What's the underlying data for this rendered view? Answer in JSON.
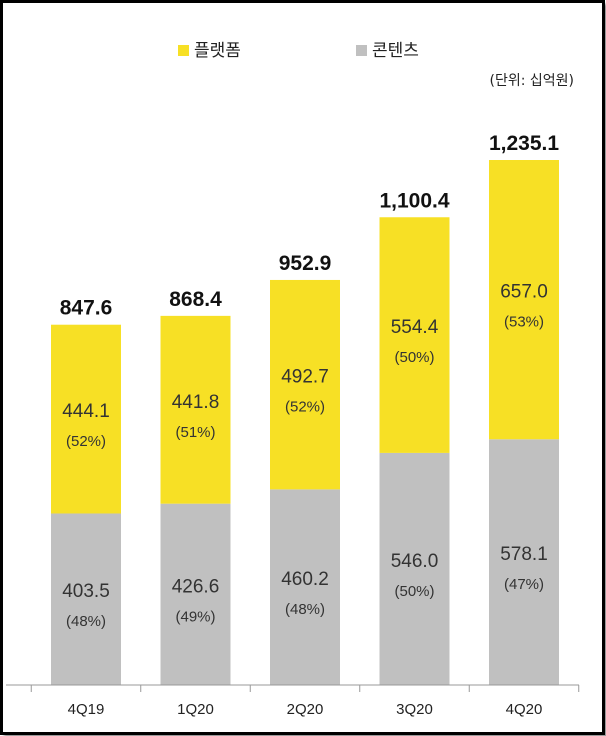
{
  "chart_data": {
    "type": "bar",
    "stacked": true,
    "categories": [
      "4Q19",
      "1Q20",
      "2Q20",
      "3Q20",
      "4Q20"
    ],
    "series": [
      {
        "name": "콘텐츠",
        "values": [
          403.5,
          426.6,
          460.2,
          546.0,
          578.1
        ],
        "value_labels": [
          "403.5",
          "426.6",
          "460.2",
          "546.0",
          "578.1"
        ],
        "share_labels": [
          "(48%)",
          "(49%)",
          "(48%)",
          "(50%)",
          "(47%)"
        ],
        "color": "#c0c0c0"
      },
      {
        "name": "플랫폼",
        "values": [
          444.1,
          441.8,
          492.7,
          554.4,
          657.0
        ],
        "value_labels": [
          "444.1",
          "441.8",
          "492.7",
          "554.4",
          "657.0"
        ],
        "share_labels": [
          "(52%)",
          "(51%)",
          "(52%)",
          "(50%)",
          "(53%)"
        ],
        "color": "#f7e025"
      }
    ],
    "totals": [
      847.6,
      868.4,
      952.9,
      1100.4,
      1235.1
    ],
    "total_labels": [
      "847.6",
      "868.4",
      "952.9",
      "1,100.4",
      "1,235.1"
    ],
    "unit_note": "(단위: 십억원)",
    "legend_position": "top-center",
    "ylim": [
      0,
      1235.1
    ],
    "grid": false
  }
}
